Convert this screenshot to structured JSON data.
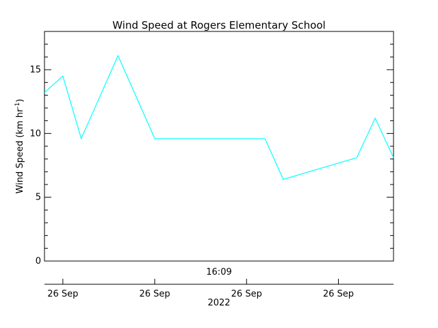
{
  "chart_data": {
    "type": "line",
    "title": "Wind Speed at Rogers Elementary School",
    "ylabel_main": "Wind Speed (km hr",
    "ylabel_sup": "-1",
    "ylabel_close": ")",
    "ylim": [
      0,
      18
    ],
    "yticks": [
      0,
      5,
      10,
      15
    ],
    "ytick_labels": [
      "0",
      "5",
      "10",
      "15"
    ],
    "yminor_step": 1,
    "xlim": [
      0,
      19
    ],
    "x_time_label": "16:09",
    "xtick_positions": [
      1,
      6,
      11,
      16
    ],
    "xtick_labels": [
      "26 Sep",
      "26 Sep",
      "26 Sep",
      "26 Sep"
    ],
    "xlabel_year": "2022",
    "grid": false,
    "legend": "none",
    "line_color": "#00ffff",
    "series": [
      {
        "x": [
          0,
          1,
          2,
          4,
          6,
          12,
          13,
          17,
          18,
          19
        ],
        "y": [
          13.2,
          14.5,
          9.6,
          16.1,
          9.6,
          9.6,
          6.4,
          8.1,
          11.2,
          8.1
        ]
      }
    ]
  }
}
